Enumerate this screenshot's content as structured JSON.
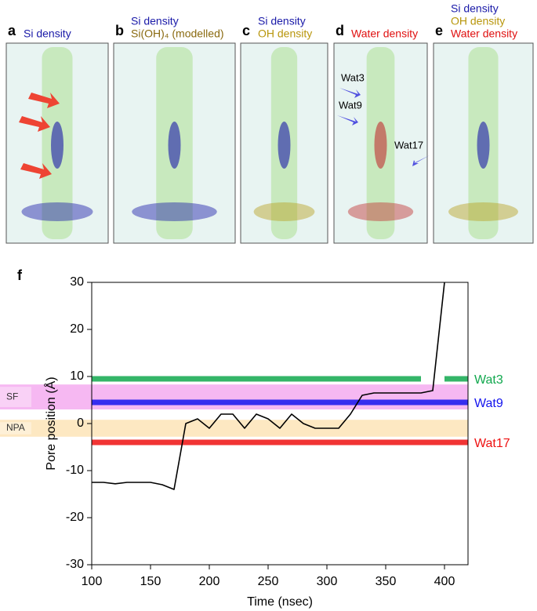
{
  "figure_letter": "f",
  "panels": [
    {
      "letter": "a",
      "labels": [
        {
          "text": "Si density",
          "color": "#1a1aa8"
        }
      ]
    },
    {
      "letter": "b",
      "labels": [
        {
          "text": "Si density",
          "color": "#1a1aa8"
        },
        {
          "text": "Si(OH)₄ (modelled)",
          "color": "#8a6a10"
        }
      ]
    },
    {
      "letter": "c",
      "labels": [
        {
          "text": "Si density",
          "color": "#1a1aa8"
        },
        {
          "text": "OH density",
          "color": "#b8960c"
        }
      ]
    },
    {
      "letter": "d",
      "labels": [
        {
          "text": "Water density",
          "color": "#e01010"
        }
      ]
    },
    {
      "letter": "e",
      "labels": [
        {
          "text": "Si density",
          "color": "#1a1aa8"
        },
        {
          "text": "OH density",
          "color": "#b8960c"
        },
        {
          "text": "Water density",
          "color": "#e01010"
        }
      ]
    }
  ],
  "panel_d_annotations": [
    "Wat3",
    "Wat9",
    "Wat17"
  ],
  "chart_data": {
    "type": "line",
    "x_label": "Time (nsec)",
    "y_label": "Pore position (Å)",
    "xlim": [
      100,
      420
    ],
    "xticks": [
      100,
      150,
      200,
      250,
      300,
      350,
      400
    ],
    "ylim": [
      -30,
      30
    ],
    "yticks": [
      30,
      20,
      10,
      0,
      -10,
      -20,
      -30
    ],
    "bands": [
      {
        "label": "SF",
        "range": [
          3,
          8.3
        ],
        "color": "#f6b8f2"
      },
      {
        "label": "NPA",
        "range": [
          -2.8,
          0.8
        ],
        "color": "#fde8c2"
      }
    ],
    "x": [
      100,
      110,
      120,
      130,
      140,
      150,
      160,
      170,
      180,
      190,
      200,
      210,
      220,
      230,
      240,
      250,
      260,
      270,
      280,
      290,
      300,
      310,
      320,
      330,
      340,
      350,
      360,
      370,
      380,
      390,
      400,
      410,
      420
    ],
    "series": [
      {
        "name": "Wat3",
        "color": "#11a84e",
        "values": [
          9.5,
          9.5,
          9.5,
          9.5,
          9.5,
          9.5,
          9.5,
          9.5,
          9.5,
          9.5,
          9.5,
          9.5,
          9.5,
          9.5,
          9.5,
          9.5,
          9.5,
          9.5,
          9.5,
          9.5,
          9.5,
          9.5,
          9.5,
          9.5,
          9.5,
          9.5,
          9.5,
          9.5,
          9.5,
          null,
          9.5,
          9.5,
          9.5
        ]
      },
      {
        "name": "Wat9",
        "color": "#1414ee",
        "values": [
          4.5,
          4.5,
          4.5,
          4.5,
          4.5,
          4.5,
          4.5,
          4.5,
          4.5,
          4.5,
          4.5,
          4.5,
          4.5,
          4.5,
          4.5,
          4.5,
          4.5,
          4.5,
          4.5,
          4.5,
          4.5,
          4.5,
          4.5,
          4.5,
          4.5,
          4.5,
          4.5,
          4.5,
          4.5,
          4.5,
          4.5,
          4.5,
          4.5
        ]
      },
      {
        "name": "Wat17",
        "color": "#ee1111",
        "values": [
          -4,
          -4,
          -4,
          -4,
          -4,
          -4,
          -4,
          -4,
          -4,
          -4,
          -4,
          -4,
          -4,
          -4,
          -4,
          -4,
          -4,
          -4,
          -4,
          -4,
          -4,
          -4,
          -4,
          -4,
          -4,
          -4,
          -4,
          -4,
          -4,
          -4,
          -4,
          -4,
          -4
        ]
      },
      {
        "color": "#000000",
        "values": [
          -12.5,
          -12.5,
          -12.8,
          -12.5,
          -12.5,
          -12.5,
          -13,
          -14,
          0,
          1,
          -1,
          2,
          2,
          -1,
          2,
          1,
          -1,
          2,
          0,
          -1,
          -1,
          -1,
          2,
          6,
          6.5,
          6.5,
          6.5,
          6.5,
          6.5,
          7,
          30,
          null,
          null
        ]
      }
    ]
  }
}
